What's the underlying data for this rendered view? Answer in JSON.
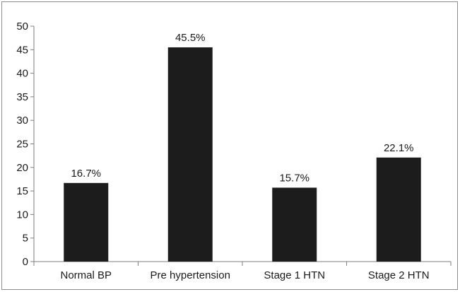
{
  "chart_data": {
    "type": "bar",
    "title": "",
    "xlabel": "",
    "ylabel": "",
    "categories": [
      "Normal BP",
      "Pre hypertension",
      "Stage 1 HTN",
      "Stage 2 HTN"
    ],
    "values": [
      16.7,
      45.5,
      15.7,
      22.1
    ],
    "data_labels": [
      "16.7%",
      "45.5%",
      "15.7%",
      "22.1%"
    ],
    "ylim": [
      0,
      50
    ],
    "yticks": [
      0,
      5,
      10,
      15,
      20,
      25,
      30,
      35,
      40,
      45,
      50
    ],
    "grid": false,
    "legend": "none",
    "bar_color": "#1c1c1c",
    "axis_color": "#7f7f7f"
  }
}
